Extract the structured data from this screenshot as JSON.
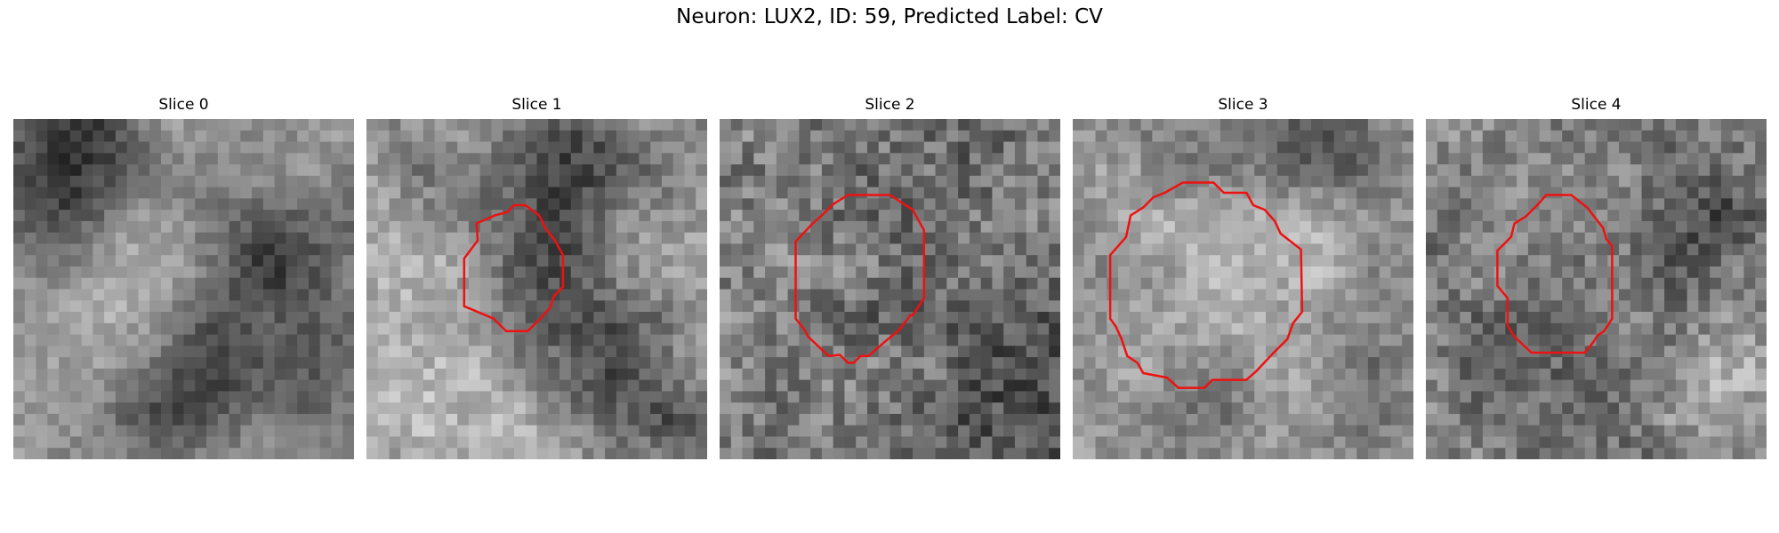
{
  "figure": {
    "title": "Neuron: LUX2, ID: 59, Predicted Label: CV"
  },
  "panels": [
    {
      "title": "Slice 0",
      "has_contour": false
    },
    {
      "title": "Slice 1",
      "has_contour": true
    },
    {
      "title": "Slice 2",
      "has_contour": true
    },
    {
      "title": "Slice 3",
      "has_contour": true
    },
    {
      "title": "Slice 4",
      "has_contour": true
    }
  ],
  "colors": {
    "contour": "#ee1111",
    "background": "#ffffff"
  },
  "image": {
    "colormap": "grayscale",
    "grid_size": 30
  }
}
